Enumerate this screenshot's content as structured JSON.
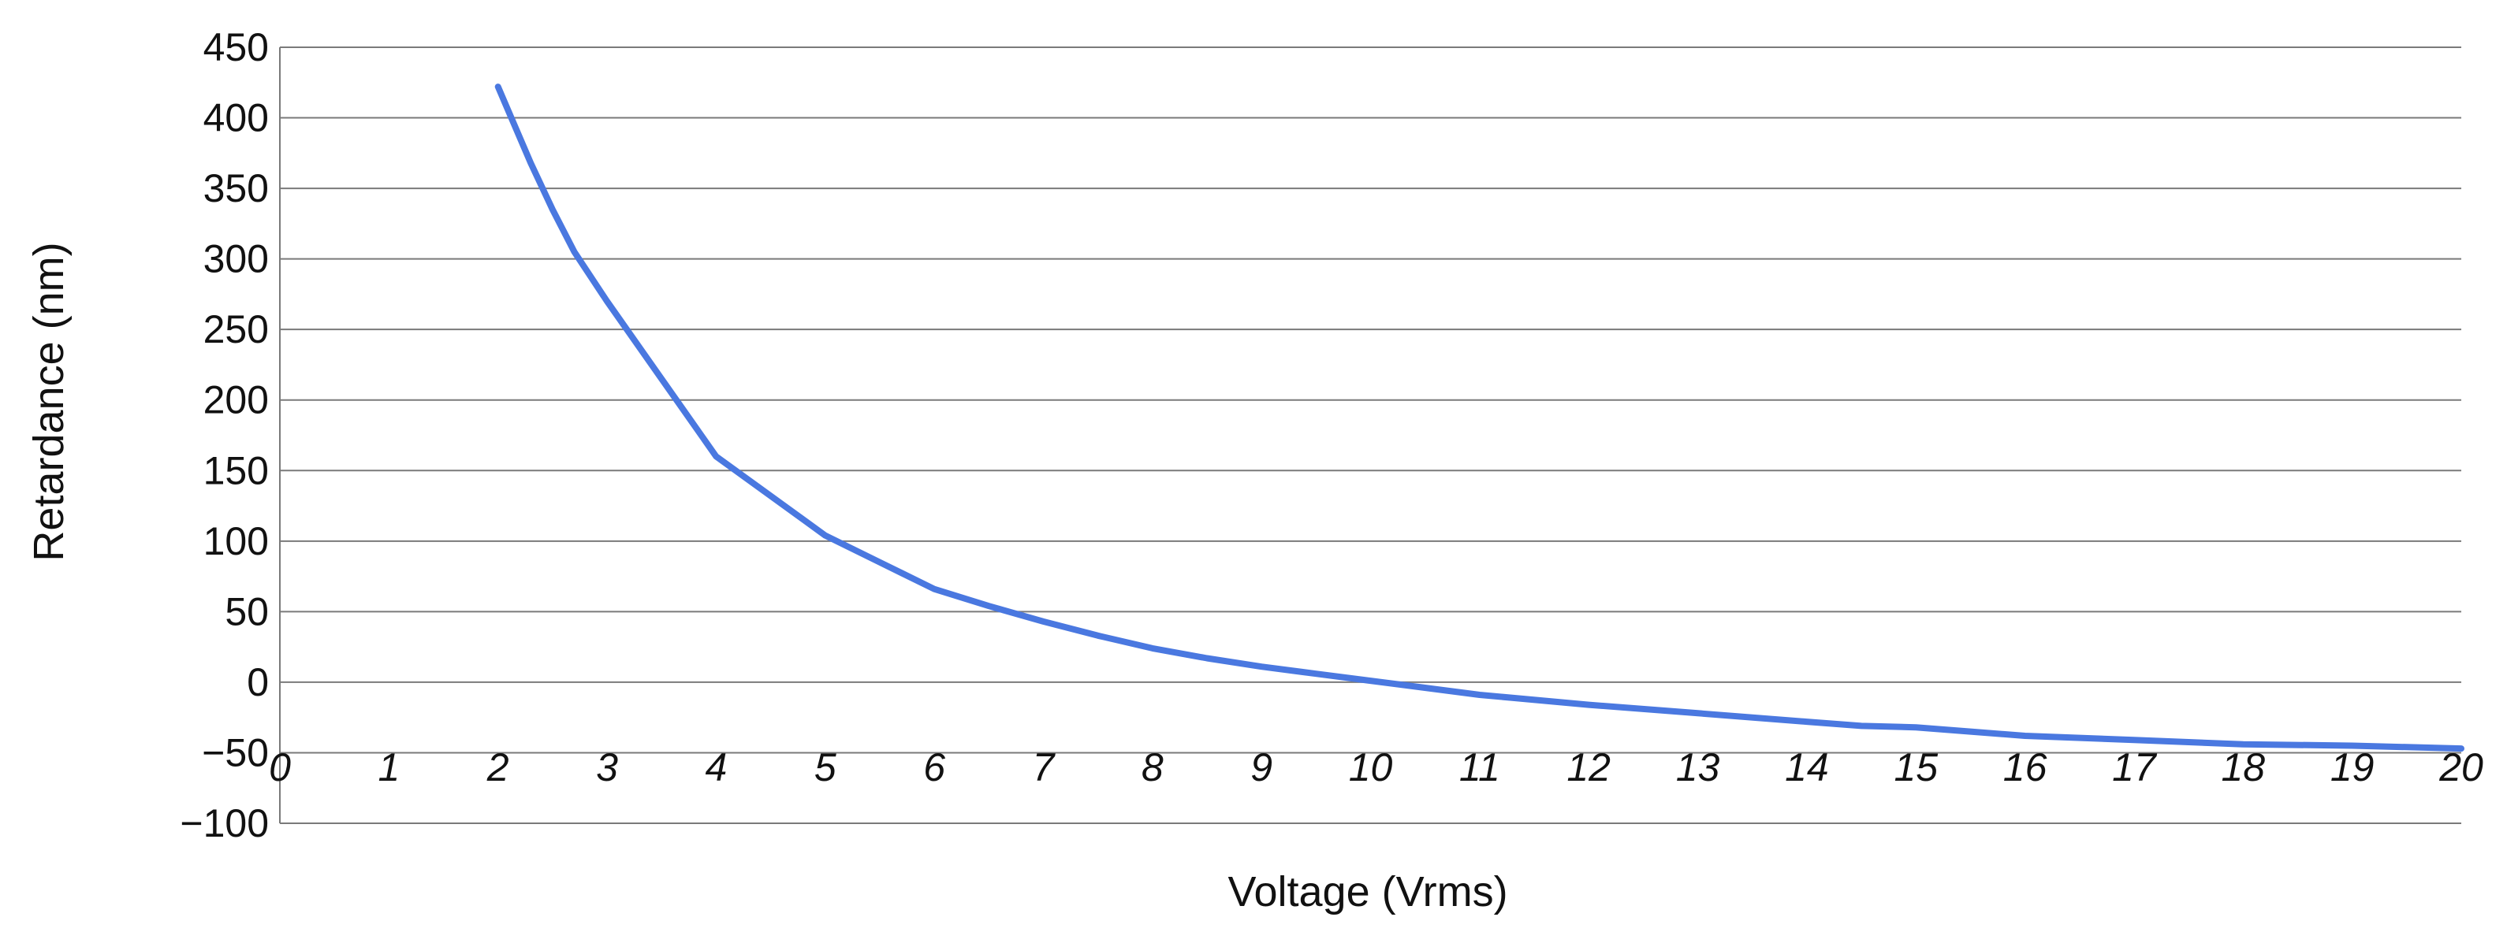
{
  "chart_data": {
    "type": "line",
    "title": "",
    "xlabel": "Voltage (Vrms)",
    "ylabel": "Retardance (nm)",
    "xlim": [
      0,
      20
    ],
    "ylim": [
      -100,
      450
    ],
    "x_ticks": [
      "0",
      "1",
      "2",
      "3",
      "4",
      "5",
      "6",
      "7",
      "8",
      "9",
      "10",
      "11",
      "12",
      "13",
      "14",
      "15",
      "16",
      "17",
      "18",
      "19",
      "20"
    ],
    "y_ticks": [
      "450",
      "400",
      "350",
      "300",
      "250",
      "200",
      "150",
      "100",
      "50",
      "0",
      "−50",
      "−100"
    ],
    "grid": true,
    "legend": "none",
    "series": [
      {
        "color": "#4a78e0",
        "x": [
          2,
          2.3,
          2.5,
          2.7,
          3,
          3.5,
          4,
          4.5,
          5,
          5.5,
          6,
          6.5,
          7,
          7.5,
          8,
          8.5,
          9,
          9.5,
          10,
          11,
          12,
          13,
          14,
          14.5,
          15,
          15.5,
          16,
          17,
          18,
          19,
          20
        ],
        "y": [
          422,
          368,
          335,
          305,
          270,
          215,
          160,
          132,
          104,
          85,
          66,
          54,
          43,
          33,
          24,
          17,
          11,
          6,
          1,
          -9,
          -16,
          -22,
          -28,
          -31,
          -32,
          -35,
          -38,
          -41,
          -44,
          -45,
          -47
        ]
      }
    ]
  }
}
